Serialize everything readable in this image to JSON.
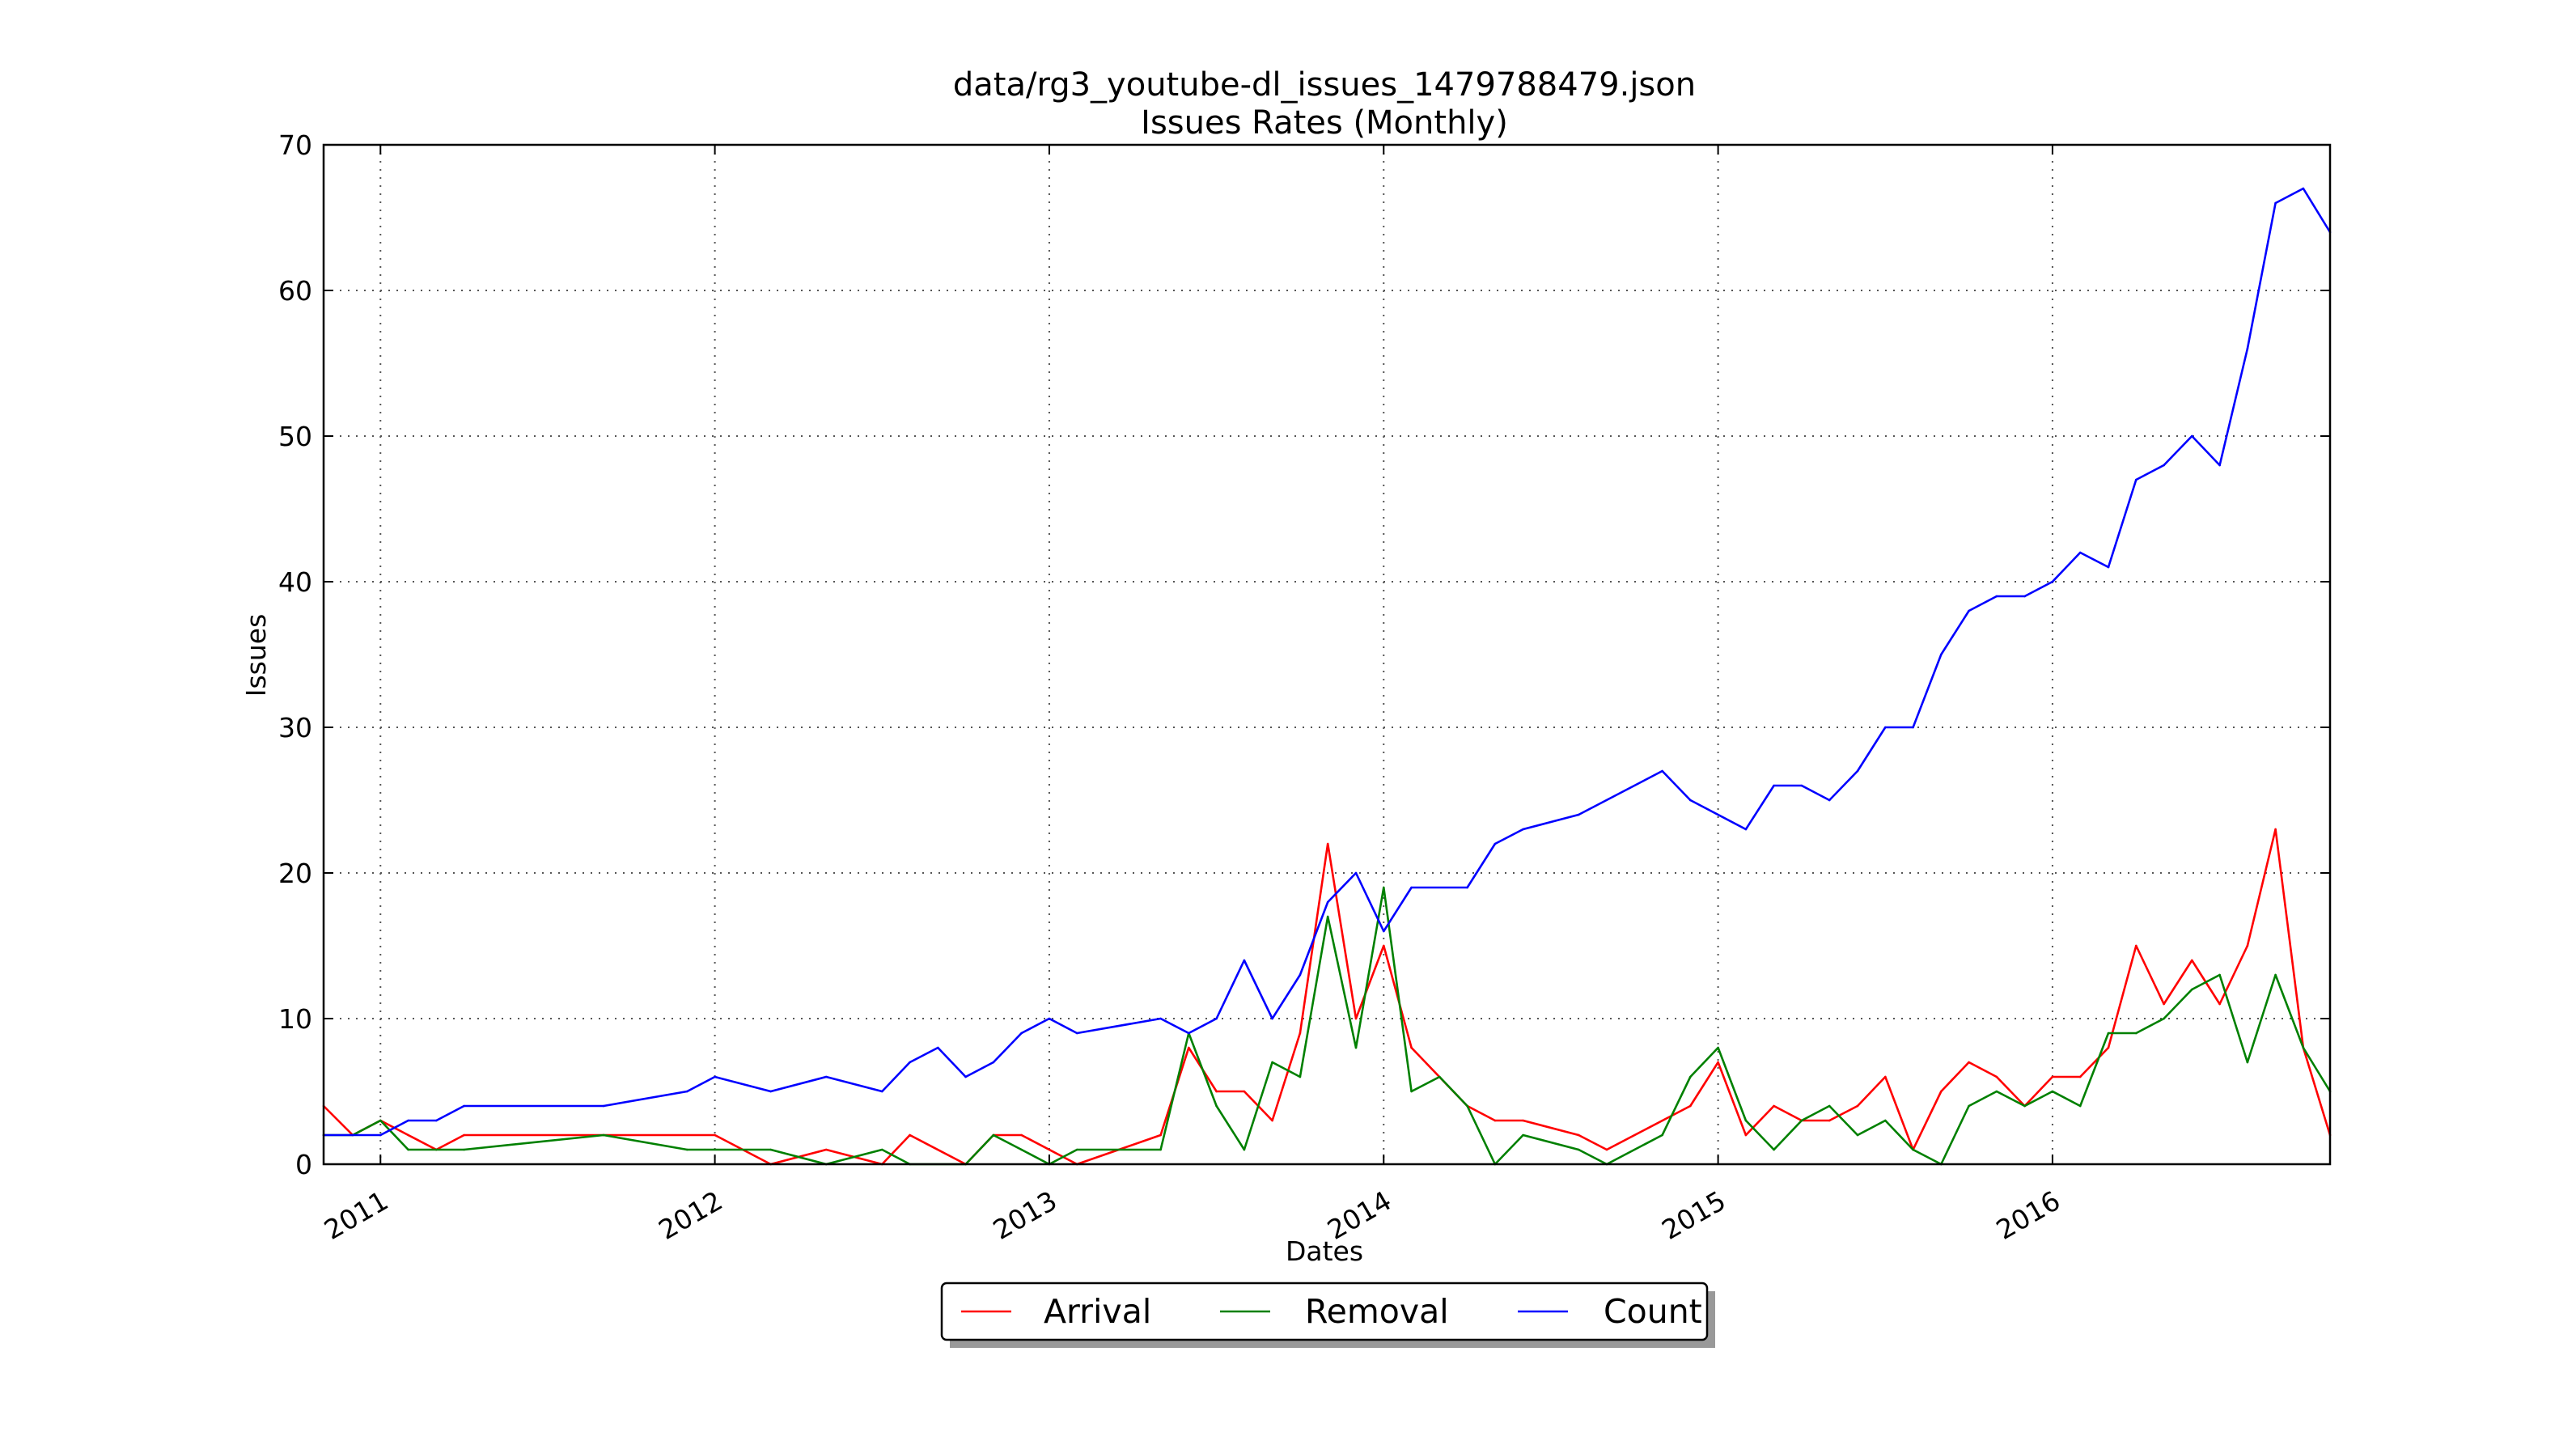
{
  "chart_data": {
    "type": "line",
    "title": "data/rg3_youtube-dl_issues_1479788479.json",
    "subtitle": "Issues Rates (Monthly)",
    "xlabel": "Dates",
    "ylabel": "Issues",
    "ylim": [
      0,
      70
    ],
    "xlim": [
      2010.83,
      2016.83
    ],
    "yticks": [
      "0",
      "10",
      "20",
      "30",
      "40",
      "50",
      "60",
      "70"
    ],
    "xticks": [
      {
        "value": 2011,
        "label": "2011"
      },
      {
        "value": 2012,
        "label": "2012"
      },
      {
        "value": 2013,
        "label": "2013"
      },
      {
        "value": 2014,
        "label": "2014"
      },
      {
        "value": 2015,
        "label": "2015"
      },
      {
        "value": 2016,
        "label": "2016"
      }
    ],
    "grid": true,
    "legend_position": "bottom-center",
    "series": [
      {
        "name": "Arrival",
        "color": "#ff0000",
        "x": [
          2010.83,
          2010.917,
          2011.0,
          2011.083,
          2011.167,
          2011.25,
          2011.667,
          2012.0,
          2012.167,
          2012.333,
          2012.5,
          2012.583,
          2012.75,
          2012.833,
          2012.917,
          2013.083,
          2013.333,
          2013.417,
          2013.5,
          2013.583,
          2013.667,
          2013.75,
          2013.833,
          2013.917,
          2014.0,
          2014.083,
          2014.25,
          2014.333,
          2014.417,
          2014.583,
          2014.667,
          2014.917,
          2015.0,
          2015.083,
          2015.167,
          2015.25,
          2015.333,
          2015.417,
          2015.5,
          2015.583,
          2015.667,
          2015.75,
          2015.833,
          2015.917,
          2016.0,
          2016.083,
          2016.167,
          2016.25,
          2016.333,
          2016.417,
          2016.5,
          2016.583,
          2016.667,
          2016.75,
          2016.83
        ],
        "values": [
          4,
          2,
          3,
          2,
          1,
          2,
          2,
          2,
          0,
          1,
          0,
          2,
          0,
          2,
          2,
          0,
          2,
          8,
          5,
          5,
          3,
          9,
          22,
          10,
          15,
          8,
          4,
          3,
          3,
          2,
          1,
          4,
          7,
          2,
          4,
          3,
          3,
          4,
          6,
          1,
          5,
          7,
          6,
          4,
          6,
          6,
          8,
          15,
          11,
          14,
          11,
          15,
          23,
          8,
          2
        ]
      },
      {
        "name": "Removal",
        "color": "#008000",
        "x": [
          2010.83,
          2010.917,
          2011.0,
          2011.083,
          2011.167,
          2011.25,
          2011.667,
          2011.917,
          2012.167,
          2012.333,
          2012.5,
          2012.583,
          2012.75,
          2012.833,
          2012.917,
          2013.0,
          2013.083,
          2013.333,
          2013.417,
          2013.5,
          2013.583,
          2013.667,
          2013.75,
          2013.833,
          2013.917,
          2014.0,
          2014.083,
          2014.167,
          2014.25,
          2014.333,
          2014.417,
          2014.583,
          2014.667,
          2014.833,
          2014.917,
          2015.0,
          2015.083,
          2015.167,
          2015.25,
          2015.333,
          2015.417,
          2015.5,
          2015.583,
          2015.667,
          2015.75,
          2015.833,
          2015.917,
          2016.0,
          2016.083,
          2016.167,
          2016.25,
          2016.333,
          2016.417,
          2016.5,
          2016.583,
          2016.667,
          2016.75,
          2016.83
        ],
        "values": [
          2,
          2,
          3,
          1,
          1,
          1,
          2,
          1,
          1,
          0,
          1,
          0,
          0,
          2,
          1,
          0,
          1,
          1,
          9,
          4,
          1,
          7,
          6,
          17,
          8,
          19,
          5,
          6,
          4,
          0,
          2,
          1,
          0,
          2,
          6,
          8,
          3,
          1,
          3,
          4,
          2,
          3,
          1,
          0,
          4,
          5,
          4,
          5,
          4,
          9,
          9,
          10,
          12,
          13,
          7,
          13,
          8,
          5
        ]
      },
      {
        "name": "Count",
        "color": "#0000ff",
        "x": [
          2010.83,
          2011.0,
          2011.083,
          2011.167,
          2011.25,
          2011.667,
          2011.917,
          2012.0,
          2012.167,
          2012.333,
          2012.5,
          2012.583,
          2012.667,
          2012.75,
          2012.833,
          2012.917,
          2013.0,
          2013.083,
          2013.333,
          2013.417,
          2013.5,
          2013.583,
          2013.667,
          2013.75,
          2013.833,
          2013.917,
          2014.0,
          2014.083,
          2014.25,
          2014.333,
          2014.417,
          2014.583,
          2014.833,
          2014.917,
          2015.083,
          2015.167,
          2015.25,
          2015.333,
          2015.417,
          2015.5,
          2015.583,
          2015.667,
          2015.75,
          2015.833,
          2015.917,
          2016.0,
          2016.083,
          2016.167,
          2016.25,
          2016.333,
          2016.417,
          2016.5,
          2016.583,
          2016.667,
          2016.75,
          2016.83
        ],
        "values": [
          2,
          2,
          3,
          3,
          4,
          4,
          5,
          6,
          5,
          6,
          5,
          7,
          8,
          6,
          7,
          9,
          10,
          9,
          10,
          9,
          10,
          14,
          10,
          13,
          18,
          20,
          16,
          19,
          19,
          22,
          23,
          24,
          27,
          25,
          23,
          26,
          26,
          25,
          27,
          30,
          30,
          35,
          38,
          39,
          39,
          40,
          42,
          41,
          47,
          48,
          50,
          48,
          56,
          66,
          67,
          64
        ]
      }
    ]
  }
}
